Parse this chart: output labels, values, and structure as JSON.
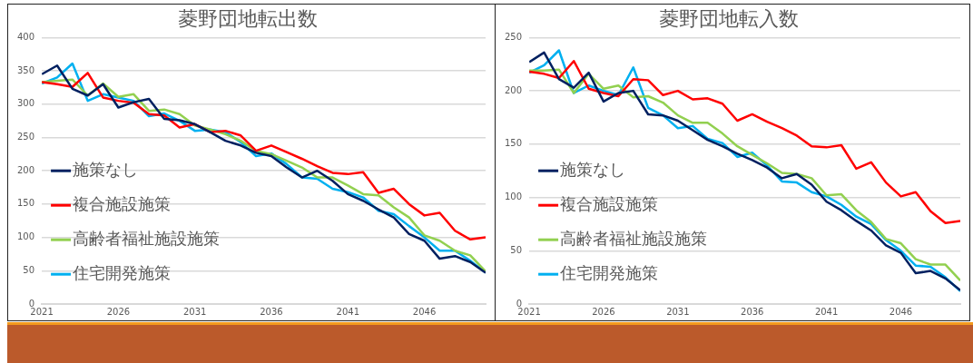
{
  "chart_data": [
    {
      "type": "line",
      "title": "菱野団地転出数",
      "x": [
        2021,
        2022,
        2023,
        2024,
        2025,
        2026,
        2027,
        2028,
        2029,
        2030,
        2031,
        2032,
        2033,
        2034,
        2035,
        2036,
        2037,
        2038,
        2039,
        2040,
        2041,
        2042,
        2043,
        2044,
        2045,
        2046,
        2047,
        2048,
        2049,
        2050
      ],
      "xlim": [
        2021,
        2050
      ],
      "xticks": [
        2021,
        2026,
        2031,
        2036,
        2041,
        2046
      ],
      "ylim": [
        0,
        400
      ],
      "yticks": [
        0,
        50,
        100,
        150,
        200,
        250,
        300,
        350,
        400
      ],
      "grid": "y",
      "legend": "left",
      "series": [
        {
          "name": "施策なし",
          "color": "#002060",
          "values": [
            345,
            358,
            323,
            313,
            330,
            295,
            303,
            308,
            278,
            276,
            270,
            258,
            245,
            238,
            227,
            222,
            205,
            190,
            200,
            185,
            165,
            155,
            142,
            130,
            105,
            95,
            68,
            72,
            63,
            47
          ]
        },
        {
          "name": "複合施設施策",
          "color": "#ff0000",
          "values": [
            333,
            330,
            326,
            347,
            310,
            305,
            302,
            285,
            283,
            265,
            270,
            258,
            260,
            253,
            230,
            238,
            228,
            218,
            207,
            197,
            195,
            198,
            167,
            173,
            150,
            133,
            137,
            110,
            97,
            100
          ]
        },
        {
          "name": "高齢者福祉施設施策",
          "color": "#92d050",
          "values": [
            333,
            335,
            337,
            313,
            331,
            311,
            315,
            290,
            292,
            285,
            268,
            262,
            255,
            245,
            230,
            225,
            215,
            205,
            190,
            190,
            178,
            165,
            163,
            145,
            130,
            103,
            95,
            80,
            73,
            49
          ]
        },
        {
          "name": "住宅開発施策",
          "color": "#00b0f0",
          "values": [
            331,
            340,
            361,
            305,
            315,
            310,
            305,
            282,
            286,
            275,
            260,
            262,
            258,
            243,
            222,
            226,
            210,
            190,
            188,
            173,
            168,
            160,
            140,
            135,
            117,
            100,
            80,
            80,
            65,
            47
          ]
        }
      ]
    },
    {
      "type": "line",
      "title": "菱野団地転入数",
      "x": [
        2021,
        2022,
        2023,
        2024,
        2025,
        2026,
        2027,
        2028,
        2029,
        2030,
        2031,
        2032,
        2033,
        2034,
        2035,
        2036,
        2037,
        2038,
        2039,
        2040,
        2041,
        2042,
        2043,
        2044,
        2045,
        2046,
        2047,
        2048,
        2049,
        2050
      ],
      "xlim": [
        2021,
        2050
      ],
      "xticks": [
        2021,
        2026,
        2031,
        2036,
        2041,
        2046
      ],
      "ylim": [
        0,
        250
      ],
      "yticks": [
        0,
        50,
        100,
        150,
        200,
        250
      ],
      "grid": "y",
      "legend": "left",
      "series": [
        {
          "name": "施策なし",
          "color": "#002060",
          "values": [
            227,
            236,
            211,
            203,
            217,
            190,
            198,
            200,
            178,
            177,
            172,
            163,
            154,
            148,
            141,
            135,
            128,
            118,
            122,
            112,
            96,
            88,
            78,
            69,
            55,
            48,
            29,
            31,
            24,
            13
          ]
        },
        {
          "name": "複合施設施策",
          "color": "#ff0000",
          "values": [
            218,
            216,
            212,
            228,
            202,
            198,
            195,
            211,
            210,
            196,
            200,
            192,
            193,
            188,
            172,
            178,
            171,
            165,
            158,
            148,
            147,
            149,
            127,
            133,
            114,
            101,
            105,
            87,
            76,
            78
          ]
        },
        {
          "name": "高齢者福祉施設施策",
          "color": "#92d050",
          "values": [
            219,
            219,
            220,
            198,
            216,
            202,
            205,
            194,
            195,
            189,
            177,
            170,
            170,
            160,
            148,
            140,
            132,
            123,
            122,
            118,
            102,
            103,
            88,
            77,
            61,
            57,
            42,
            37,
            37,
            22
          ]
        },
        {
          "name": "住宅開発施策",
          "color": "#00b0f0",
          "values": [
            217,
            224,
            238,
            198,
            205,
            200,
            196,
            222,
            184,
            177,
            165,
            167,
            155,
            151,
            138,
            142,
            130,
            115,
            114,
            105,
            101,
            93,
            82,
            75,
            60,
            50,
            36,
            35,
            25,
            12
          ]
        }
      ]
    }
  ]
}
